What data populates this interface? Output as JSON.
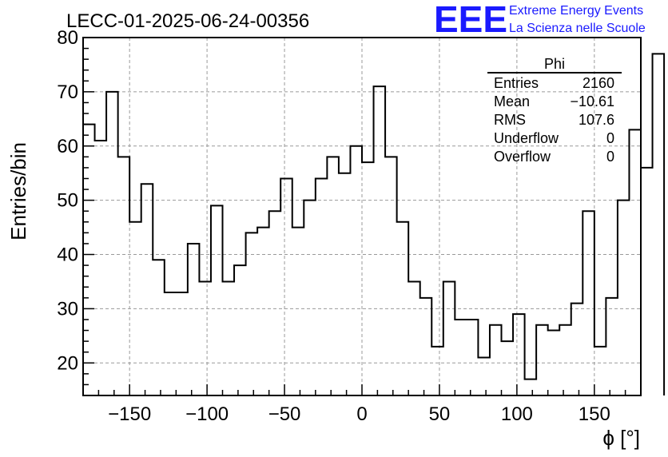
{
  "chart_data": {
    "type": "bar",
    "title": "LECC-01-2025-06-24-00356",
    "xlabel": "ϕ [°]",
    "ylabel": "Entries/bin",
    "xlim": [
      -180,
      180
    ],
    "ylim": [
      14,
      80
    ],
    "xticks": [
      -150,
      -100,
      -50,
      0,
      50,
      100,
      150
    ],
    "yticks": [
      20,
      30,
      40,
      50,
      60,
      70,
      80
    ],
    "xtick_labels": [
      "−150",
      "−100",
      "−50",
      "0",
      "50",
      "100",
      "150"
    ],
    "ytick_labels": [
      "20",
      "30",
      "40",
      "50",
      "60",
      "70",
      "80"
    ],
    "grid": true,
    "bin_edges_start": -180,
    "bin_width": 7.5,
    "values": [
      64,
      61,
      70,
      58,
      46,
      53,
      39,
      33,
      33,
      42,
      35,
      49,
      35,
      38,
      44,
      45,
      48,
      54,
      45,
      50,
      54,
      58,
      55,
      60,
      57,
      71,
      58,
      46,
      35,
      32,
      23,
      35,
      28,
      28,
      21,
      27,
      24,
      29,
      17,
      27,
      26,
      27,
      31,
      48,
      23,
      32,
      50,
      63,
      56,
      77
    ],
    "stats": {
      "title": "Phi",
      "rows": [
        {
          "label": "Entries",
          "value": "2160"
        },
        {
          "label": "Mean",
          "value": "−10.61"
        },
        {
          "label": "RMS",
          "value": "107.6"
        },
        {
          "label": "Underflow",
          "value": "0"
        },
        {
          "label": "Overflow",
          "value": "0"
        }
      ]
    },
    "logo": {
      "mark": "EEE",
      "line1": "Extreme Energy Events",
      "line2": "La Scienza nelle Scuole",
      "color": "#1a1aff"
    }
  }
}
